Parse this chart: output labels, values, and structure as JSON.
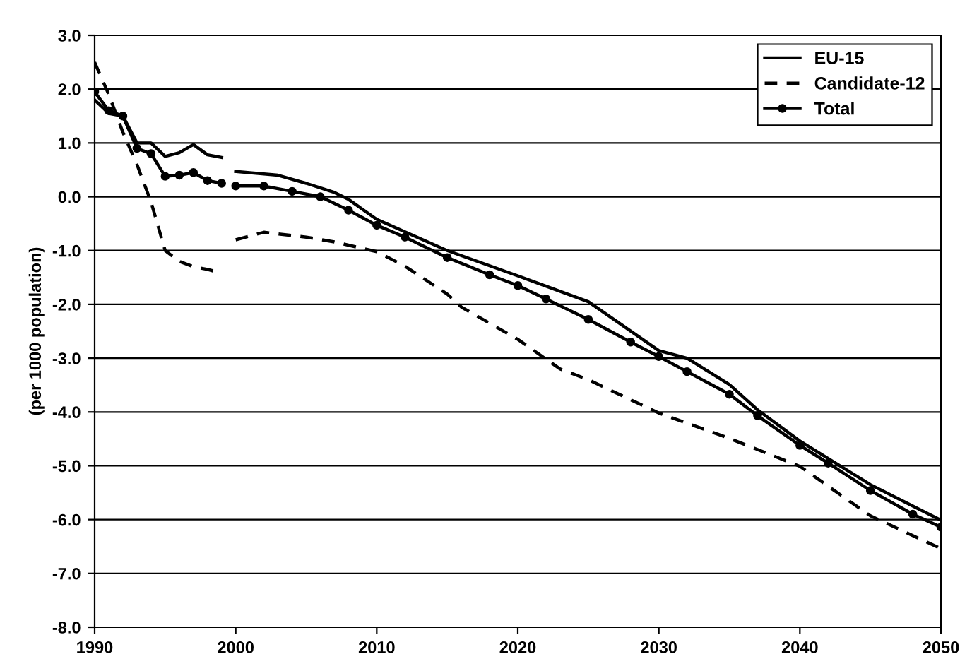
{
  "chart_data": {
    "type": "line",
    "ylabel": "(per 1000 population)",
    "xlim": [
      1990,
      2050
    ],
    "xticks": [
      1990,
      2000,
      2010,
      2020,
      2030,
      2040,
      2050
    ],
    "ylim": [
      -8,
      3
    ],
    "yticks": [
      {
        "value": 3,
        "label": "3.0"
      },
      {
        "value": 2,
        "label": "2.0"
      },
      {
        "value": 1,
        "label": "1.0"
      },
      {
        "value": 0,
        "label": "0.0"
      },
      {
        "value": -1,
        "label": "-1.0"
      },
      {
        "value": -2,
        "label": "-2.0"
      },
      {
        "value": -3,
        "label": "-3.0"
      },
      {
        "value": -4,
        "label": "-4.0"
      },
      {
        "value": -5,
        "label": "-5.0"
      },
      {
        "value": -6,
        "label": "-6.0"
      },
      {
        "value": -7,
        "label": "-7.0"
      },
      {
        "value": -8,
        "label": "-8.0"
      }
    ],
    "grid": "y",
    "legend": "top right",
    "series": [
      {
        "name": "EU-15",
        "color": "#000000",
        "line_style": "solid",
        "marker": "none",
        "x": [
          1990,
          1991,
          1992,
          1993,
          1994,
          1995,
          1996,
          1997,
          1998,
          1999,
          1999.5,
          2000,
          2003,
          2005,
          2007,
          2008,
          2010,
          2015,
          2020,
          2025,
          2030,
          2032,
          2035,
          2037,
          2040,
          2045,
          2050
        ],
        "values": [
          1.8,
          1.55,
          1.5,
          1.0,
          1.0,
          0.75,
          0.82,
          0.97,
          0.78,
          0.73,
          null,
          0.47,
          0.4,
          0.25,
          0.08,
          -0.05,
          -0.42,
          -1.0,
          -1.47,
          -1.95,
          -2.86,
          -3.0,
          -3.49,
          -3.96,
          -4.54,
          -5.35,
          -6.01
        ]
      },
      {
        "name": "Candidate-12",
        "color": "#000000",
        "line_style": "dashed",
        "marker": "none",
        "x": [
          1990,
          1991,
          1992,
          1993,
          1994,
          1995,
          1996,
          1997,
          1998,
          1999,
          1999.5,
          2000,
          2002,
          2005,
          2007,
          2010,
          2012,
          2015,
          2016,
          2020,
          2023,
          2025,
          2030,
          2035,
          2040,
          2045,
          2050
        ],
        "values": [
          2.5,
          1.9,
          1.2,
          0.6,
          -0.1,
          -1.0,
          -1.2,
          -1.3,
          -1.35,
          -1.42,
          null,
          -0.8,
          -0.66,
          -0.75,
          -0.84,
          -1.02,
          -1.29,
          -1.81,
          -2.05,
          -2.65,
          -3.2,
          -3.4,
          -4.02,
          -4.49,
          -5.01,
          -5.93,
          -6.54
        ]
      },
      {
        "name": "Total",
        "color": "#000000",
        "line_style": "solid",
        "marker": "circle",
        "x": [
          1990,
          1991,
          1992,
          1993,
          1994,
          1995,
          1996,
          1997,
          1998,
          1999,
          1999.5,
          2000,
          2002,
          2004,
          2006,
          2008,
          2010,
          2012,
          2015,
          2018,
          2020,
          2022,
          2025,
          2028,
          2030,
          2032,
          2035,
          2037,
          2040,
          2042,
          2045,
          2048,
          2050
        ],
        "values": [
          1.95,
          1.6,
          1.5,
          0.9,
          0.8,
          0.38,
          0.4,
          0.45,
          0.3,
          0.25,
          null,
          0.2,
          0.2,
          0.1,
          0.0,
          -0.25,
          -0.53,
          -0.75,
          -1.13,
          -1.45,
          -1.65,
          -1.9,
          -2.28,
          -2.7,
          -2.97,
          -3.25,
          -3.67,
          -4.07,
          -4.62,
          -4.95,
          -5.46,
          -5.9,
          -6.14
        ]
      }
    ]
  }
}
